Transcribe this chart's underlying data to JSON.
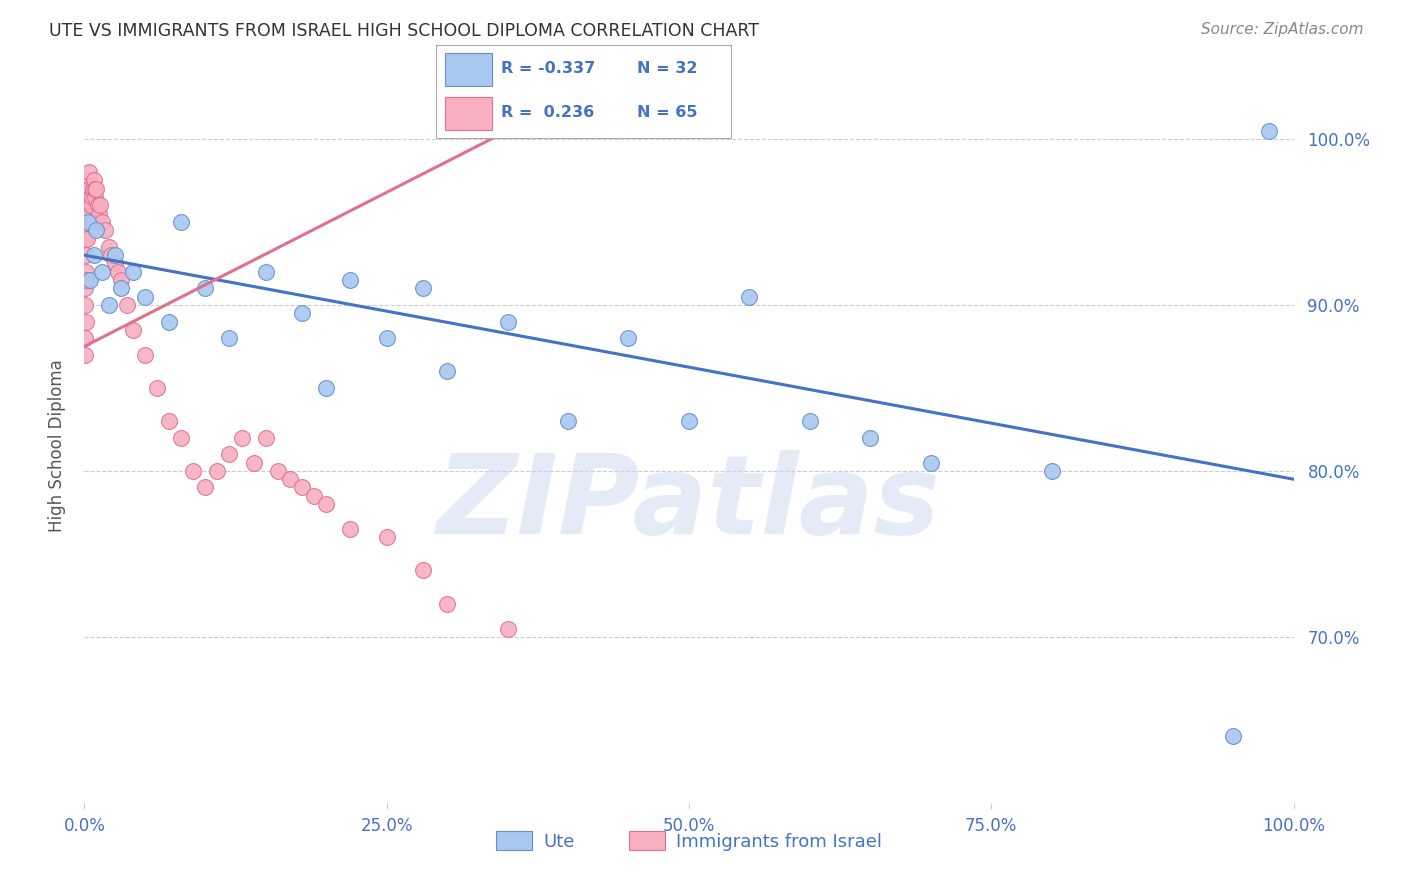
{
  "title": "UTE VS IMMIGRANTS FROM ISRAEL HIGH SCHOOL DIPLOMA CORRELATION CHART",
  "source": "Source: ZipAtlas.com",
  "ylabel": "High School Diploma",
  "watermark": "ZIPatlas",
  "legend_blue_R": "-0.337",
  "legend_blue_N": "32",
  "legend_pink_R": "0.236",
  "legend_pink_N": "65",
  "label_blue": "Ute",
  "label_pink": "Immigrants from Israel",
  "xlim": [
    0.0,
    100.0
  ],
  "ylim": [
    60.0,
    103.0
  ],
  "yticks": [
    70.0,
    80.0,
    90.0,
    100.0
  ],
  "xticks": [
    0.0,
    25.0,
    50.0,
    75.0,
    100.0
  ],
  "blue_color": "#A8C8F0",
  "pink_color": "#F8B0C0",
  "blue_edge_color": "#6090D0",
  "pink_edge_color": "#E07090",
  "blue_line_color": "#4472C4",
  "pink_line_color": "#E07090",
  "blue_x": [
    0.3,
    0.5,
    0.8,
    1.0,
    1.5,
    2.0,
    2.5,
    3.0,
    4.0,
    5.0,
    7.0,
    8.0,
    10.0,
    12.0,
    15.0,
    18.0,
    20.0,
    22.0,
    25.0,
    28.0,
    30.0,
    35.0,
    40.0,
    45.0,
    50.0,
    55.0,
    60.0,
    65.0,
    70.0,
    80.0,
    95.0,
    98.0
  ],
  "blue_y": [
    95.0,
    91.5,
    93.0,
    94.5,
    92.0,
    90.0,
    93.0,
    91.0,
    92.0,
    90.5,
    89.0,
    95.0,
    91.0,
    88.0,
    92.0,
    89.5,
    85.0,
    91.5,
    88.0,
    91.0,
    86.0,
    89.0,
    83.0,
    88.0,
    83.0,
    90.5,
    83.0,
    82.0,
    80.5,
    80.0,
    64.0,
    100.5
  ],
  "pink_x": [
    0.05,
    0.07,
    0.08,
    0.09,
    0.1,
    0.12,
    0.14,
    0.15,
    0.16,
    0.18,
    0.2,
    0.22,
    0.25,
    0.28,
    0.3,
    0.32,
    0.35,
    0.38,
    0.4,
    0.42,
    0.45,
    0.48,
    0.5,
    0.55,
    0.6,
    0.65,
    0.7,
    0.75,
    0.8,
    0.85,
    0.9,
    1.0,
    1.1,
    1.2,
    1.3,
    1.5,
    1.7,
    2.0,
    2.2,
    2.5,
    2.8,
    3.0,
    3.5,
    4.0,
    5.0,
    6.0,
    7.0,
    8.0,
    9.0,
    10.0,
    11.0,
    12.0,
    13.0,
    14.0,
    15.0,
    16.0,
    17.0,
    18.0,
    19.0,
    20.0,
    22.0,
    25.0,
    28.0,
    30.0,
    35.0
  ],
  "pink_y": [
    87.0,
    88.0,
    90.0,
    91.0,
    89.0,
    92.0,
    91.5,
    94.0,
    93.0,
    95.0,
    94.0,
    96.0,
    95.5,
    96.0,
    97.0,
    96.5,
    97.5,
    97.0,
    98.0,
    97.0,
    96.5,
    96.0,
    95.5,
    96.0,
    95.0,
    96.5,
    97.0,
    97.0,
    97.5,
    96.5,
    97.0,
    97.0,
    96.0,
    95.5,
    96.0,
    95.0,
    94.5,
    93.5,
    93.0,
    92.5,
    92.0,
    91.5,
    90.0,
    88.5,
    87.0,
    85.0,
    83.0,
    82.0,
    80.0,
    79.0,
    80.0,
    81.0,
    82.0,
    80.5,
    82.0,
    80.0,
    79.5,
    79.0,
    78.5,
    78.0,
    76.5,
    76.0,
    74.0,
    72.0,
    70.5
  ],
  "blue_trend_x": [
    0.0,
    100.0
  ],
  "blue_trend_y": [
    93.0,
    79.5
  ],
  "pink_trend_x": [
    0.0,
    35.0
  ],
  "pink_trend_y": [
    87.5,
    100.5
  ]
}
